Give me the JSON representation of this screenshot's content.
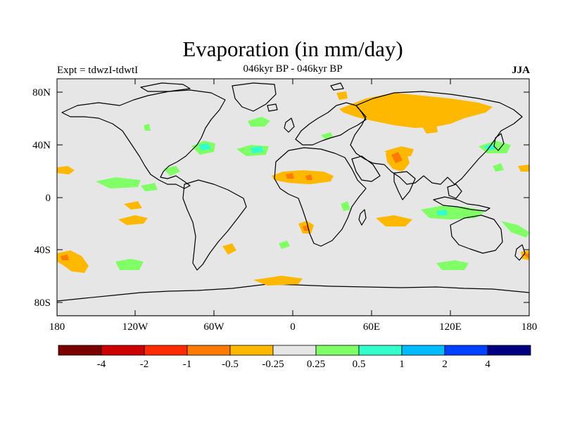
{
  "map": {
    "title": "Evaporation (in mm/day)",
    "subtitle": "046kyr BP - 046kyr BP",
    "experiment": "Expt = tdwzI-tdwtI",
    "season": "JJA",
    "lat_labels": [
      "80N",
      "40N",
      "0",
      "40S",
      "80S"
    ],
    "lon_labels": [
      "180",
      "120W",
      "60W",
      "0",
      "60E",
      "120E",
      "180"
    ]
  },
  "colorbar": {
    "colors": [
      "#7a0000",
      "#cc0000",
      "#ff2a00",
      "#ff7a00",
      "#ffb800",
      "#e6e6e6",
      "#80ff66",
      "#33ffcc",
      "#00bbff",
      "#0040ff",
      "#000080"
    ],
    "labels": [
      "-4",
      "-2",
      "-1",
      "-0.5",
      "-0.25",
      "0.25",
      "0.5",
      "1",
      "2",
      "4"
    ]
  },
  "colors": {
    "background": "#e6e6e6",
    "negative": "#ffb800",
    "negative_strong": "#ff7a00",
    "positive": "#80ff66",
    "positive_strong": "#33ffcc"
  }
}
